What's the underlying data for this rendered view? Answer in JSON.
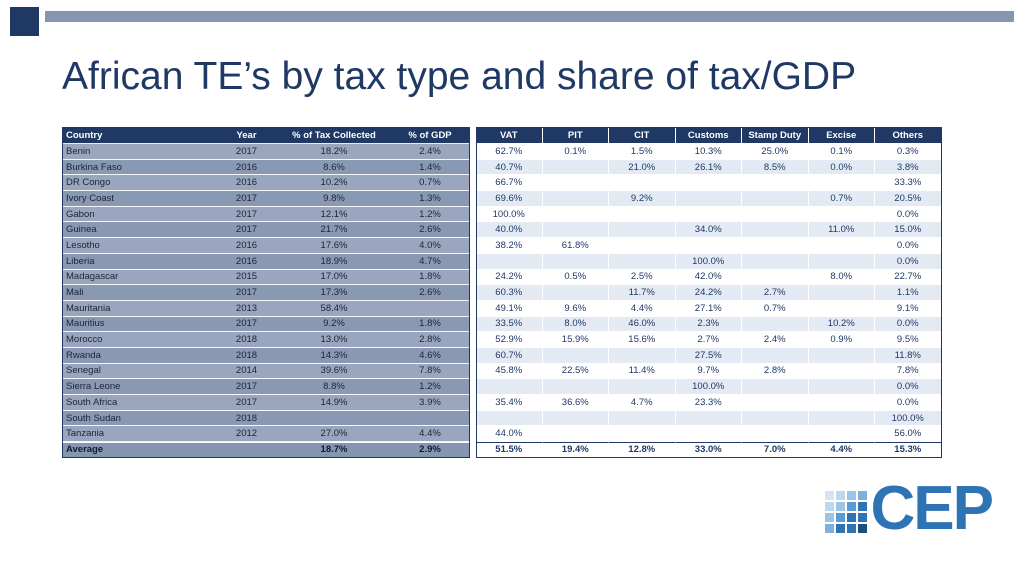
{
  "title": "African TE’s by tax type and share of tax/GDP",
  "decor": {
    "corner_square_color": "#1F3864",
    "top_bar_color": "#8496B0"
  },
  "colors": {
    "header_bg": "#1F3864",
    "left_band_light": "#99A6BD",
    "left_band_dark": "#8A99B3",
    "right_band_light": "#E3EAF4",
    "right_band_white": "#FFFFFF",
    "title_text": "#1F3864",
    "logo_blue": "#2E74B5"
  },
  "table": {
    "headers": [
      "Country",
      "Year",
      "% of Tax Collected",
      "% of GDP",
      "VAT",
      "PIT",
      "CIT",
      "Customs",
      "Stamp Duty",
      "Excise",
      "Others"
    ],
    "rows": [
      [
        "Benin",
        "2017",
        "18.2%",
        "2.4%",
        "62.7%",
        "0.1%",
        "1.5%",
        "10.3%",
        "25.0%",
        "0.1%",
        "0.3%"
      ],
      [
        "Burkina Faso",
        "2016",
        "8.6%",
        "1.4%",
        "40.7%",
        "",
        "21.0%",
        "26.1%",
        "8.5%",
        "0.0%",
        "3.8%"
      ],
      [
        "DR Congo",
        "2016",
        "10.2%",
        "0.7%",
        "66.7%",
        "",
        "",
        "",
        "",
        "",
        "33.3%"
      ],
      [
        "Ivory Coast",
        "2017",
        "9.8%",
        "1.3%",
        "69.6%",
        "",
        "9.2%",
        "",
        "",
        "0.7%",
        "20.5%"
      ],
      [
        "Gabon",
        "2017",
        "12.1%",
        "1.2%",
        "100.0%",
        "",
        "",
        "",
        "",
        "",
        "0.0%"
      ],
      [
        "Guinea",
        "2017",
        "21.7%",
        "2.6%",
        "40.0%",
        "",
        "",
        "34.0%",
        "",
        "11.0%",
        "15.0%"
      ],
      [
        "Lesotho",
        "2016",
        "17.6%",
        "4.0%",
        "38.2%",
        "61.8%",
        "",
        "",
        "",
        "",
        "0.0%"
      ],
      [
        "Liberia",
        "2016",
        "18.9%",
        "4.7%",
        "",
        "",
        "",
        "100.0%",
        "",
        "",
        "0.0%"
      ],
      [
        "Madagascar",
        "2015",
        "17.0%",
        "1.8%",
        "24.2%",
        "0.5%",
        "2.5%",
        "42.0%",
        "",
        "8.0%",
        "22.7%"
      ],
      [
        "Mali",
        "2017",
        "17.3%",
        "2.6%",
        "60.3%",
        "",
        "11.7%",
        "24.2%",
        "2.7%",
        "",
        "1.1%"
      ],
      [
        "Mauritania",
        "2013",
        "58.4%",
        "",
        "49.1%",
        "9.6%",
        "4.4%",
        "27.1%",
        "0.7%",
        "",
        "9.1%"
      ],
      [
        "Mauritius",
        "2017",
        "9.2%",
        "1.8%",
        "33.5%",
        "8.0%",
        "46.0%",
        "2.3%",
        "",
        "10.2%",
        "0.0%"
      ],
      [
        "Morocco",
        "2018",
        "13.0%",
        "2.8%",
        "52.9%",
        "15.9%",
        "15.6%",
        "2.7%",
        "2.4%",
        "0.9%",
        "9.5%"
      ],
      [
        "Rwanda",
        "2018",
        "14.3%",
        "4.6%",
        "60.7%",
        "",
        "",
        "27.5%",
        "",
        "",
        "11.8%"
      ],
      [
        "Senegal",
        "2014",
        "39.6%",
        "7.8%",
        "45.8%",
        "22.5%",
        "11.4%",
        "9.7%",
        "2.8%",
        "",
        "7.8%"
      ],
      [
        "Sierra Leone",
        "2017",
        "8.8%",
        "1.2%",
        "",
        "",
        "",
        "100.0%",
        "",
        "",
        "0.0%"
      ],
      [
        "South Africa",
        "2017",
        "14.9%",
        "3.9%",
        "35.4%",
        "36.6%",
        "4.7%",
        "23.3%",
        "",
        "",
        "0.0%"
      ],
      [
        "South Sudan",
        "2018",
        "",
        "",
        "",
        "",
        "",
        "",
        "",
        "",
        "100.0%"
      ],
      [
        "Tanzania",
        "2012",
        "27.0%",
        "4.4%",
        "44.0%",
        "",
        "",
        "",
        "",
        "",
        "56.0%"
      ]
    ],
    "average_row": [
      "Average",
      "",
      "18.7%",
      "2.9%",
      "51.5%",
      "19.4%",
      "12.8%",
      "33.0%",
      "7.0%",
      "4.4%",
      "15.3%"
    ]
  },
  "logo": {
    "text": "CEP"
  }
}
